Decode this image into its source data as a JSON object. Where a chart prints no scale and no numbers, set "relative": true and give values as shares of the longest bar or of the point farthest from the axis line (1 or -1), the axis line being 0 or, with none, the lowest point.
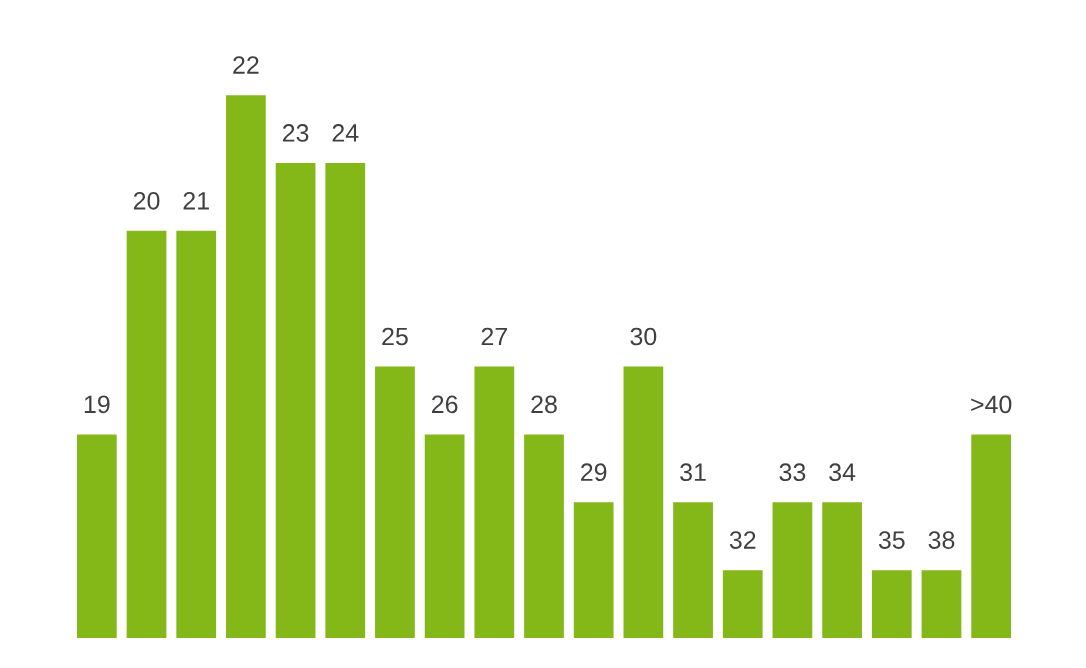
{
  "chart_data": {
    "type": "bar",
    "relative": true,
    "color": "#84b819",
    "categories": [
      "19",
      "20",
      "21",
      "22",
      "23",
      "24",
      "25",
      "26",
      "27",
      "28",
      "29",
      "30",
      "31",
      "32",
      "33",
      "34",
      "35",
      "38",
      ">40"
    ],
    "values": [
      0.375,
      0.75,
      0.75,
      1,
      0.875,
      0.875,
      0.5,
      0.375,
      0.5,
      0.375,
      0.25,
      0.5,
      0.25,
      0.125,
      0.25,
      0.25,
      0.125,
      0.125,
      0.375
    ]
  }
}
